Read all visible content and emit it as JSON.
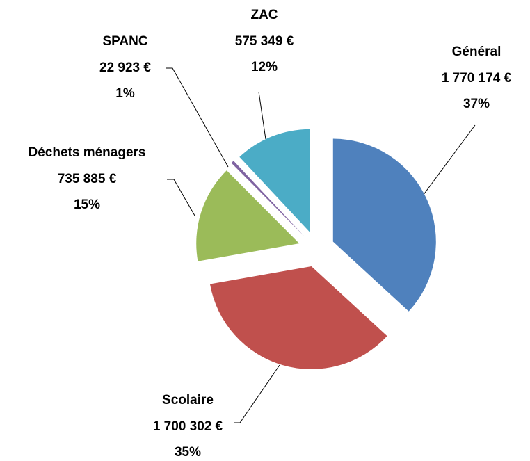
{
  "chart_data": {
    "type": "pie",
    "categories": [
      "Général",
      "Scolaire",
      "Déchets ménagers",
      "SPANC",
      "ZAC"
    ],
    "values": [
      1770174,
      1700302,
      735885,
      22923,
      575349
    ],
    "value_labels": [
      "1 770 174 €",
      "1 700 302 €",
      "735 885 €",
      "22 923 €",
      "575 349 €"
    ],
    "percent_labels": [
      "37%",
      "35%",
      "15%",
      "1%",
      "12%"
    ],
    "colors": [
      "#4f81bd",
      "#c0504d",
      "#9bbb59",
      "#8064a2",
      "#4bacc6"
    ],
    "exploded": true
  }
}
